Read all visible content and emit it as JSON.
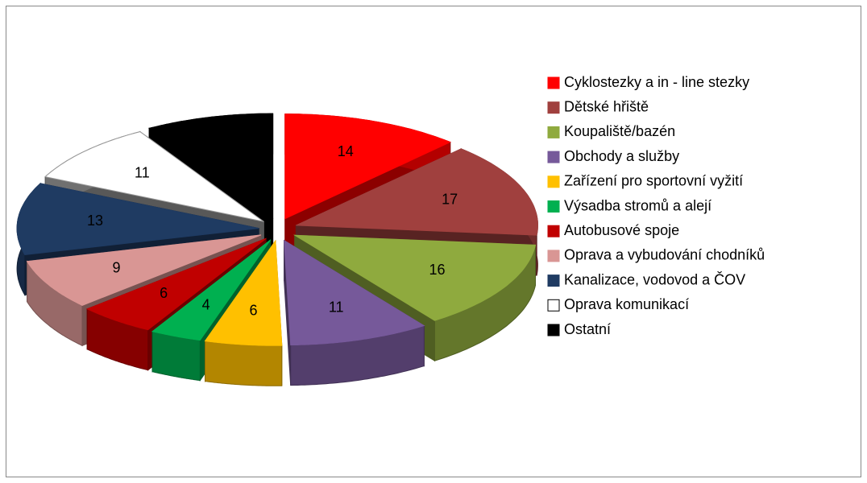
{
  "chart_data": {
    "type": "pie",
    "categories": [
      "Cyklostezky a in - line stezky",
      "Dětské hřiště",
      "Koupaliště/bazén",
      "Obchody a služby",
      "Zařízení pro sportovní vyžití",
      "Výsadba stromů a alejí",
      "Autobusové spoje",
      "Oprava a vybudování chodníků",
      "Kanalizace, vodovod a ČOV",
      "Oprava komunikací",
      "Ostatní"
    ],
    "values": [
      14,
      17,
      16,
      11,
      6,
      4,
      6,
      9,
      13,
      11,
      10
    ],
    "colors": [
      "#ff0000",
      "#a0403e",
      "#8faa3e",
      "#76599a",
      "#ffc000",
      "#00b050",
      "#c00000",
      "#d99694",
      "#1f3b62",
      "#ffffff",
      "#000000"
    ],
    "legend": "right"
  }
}
